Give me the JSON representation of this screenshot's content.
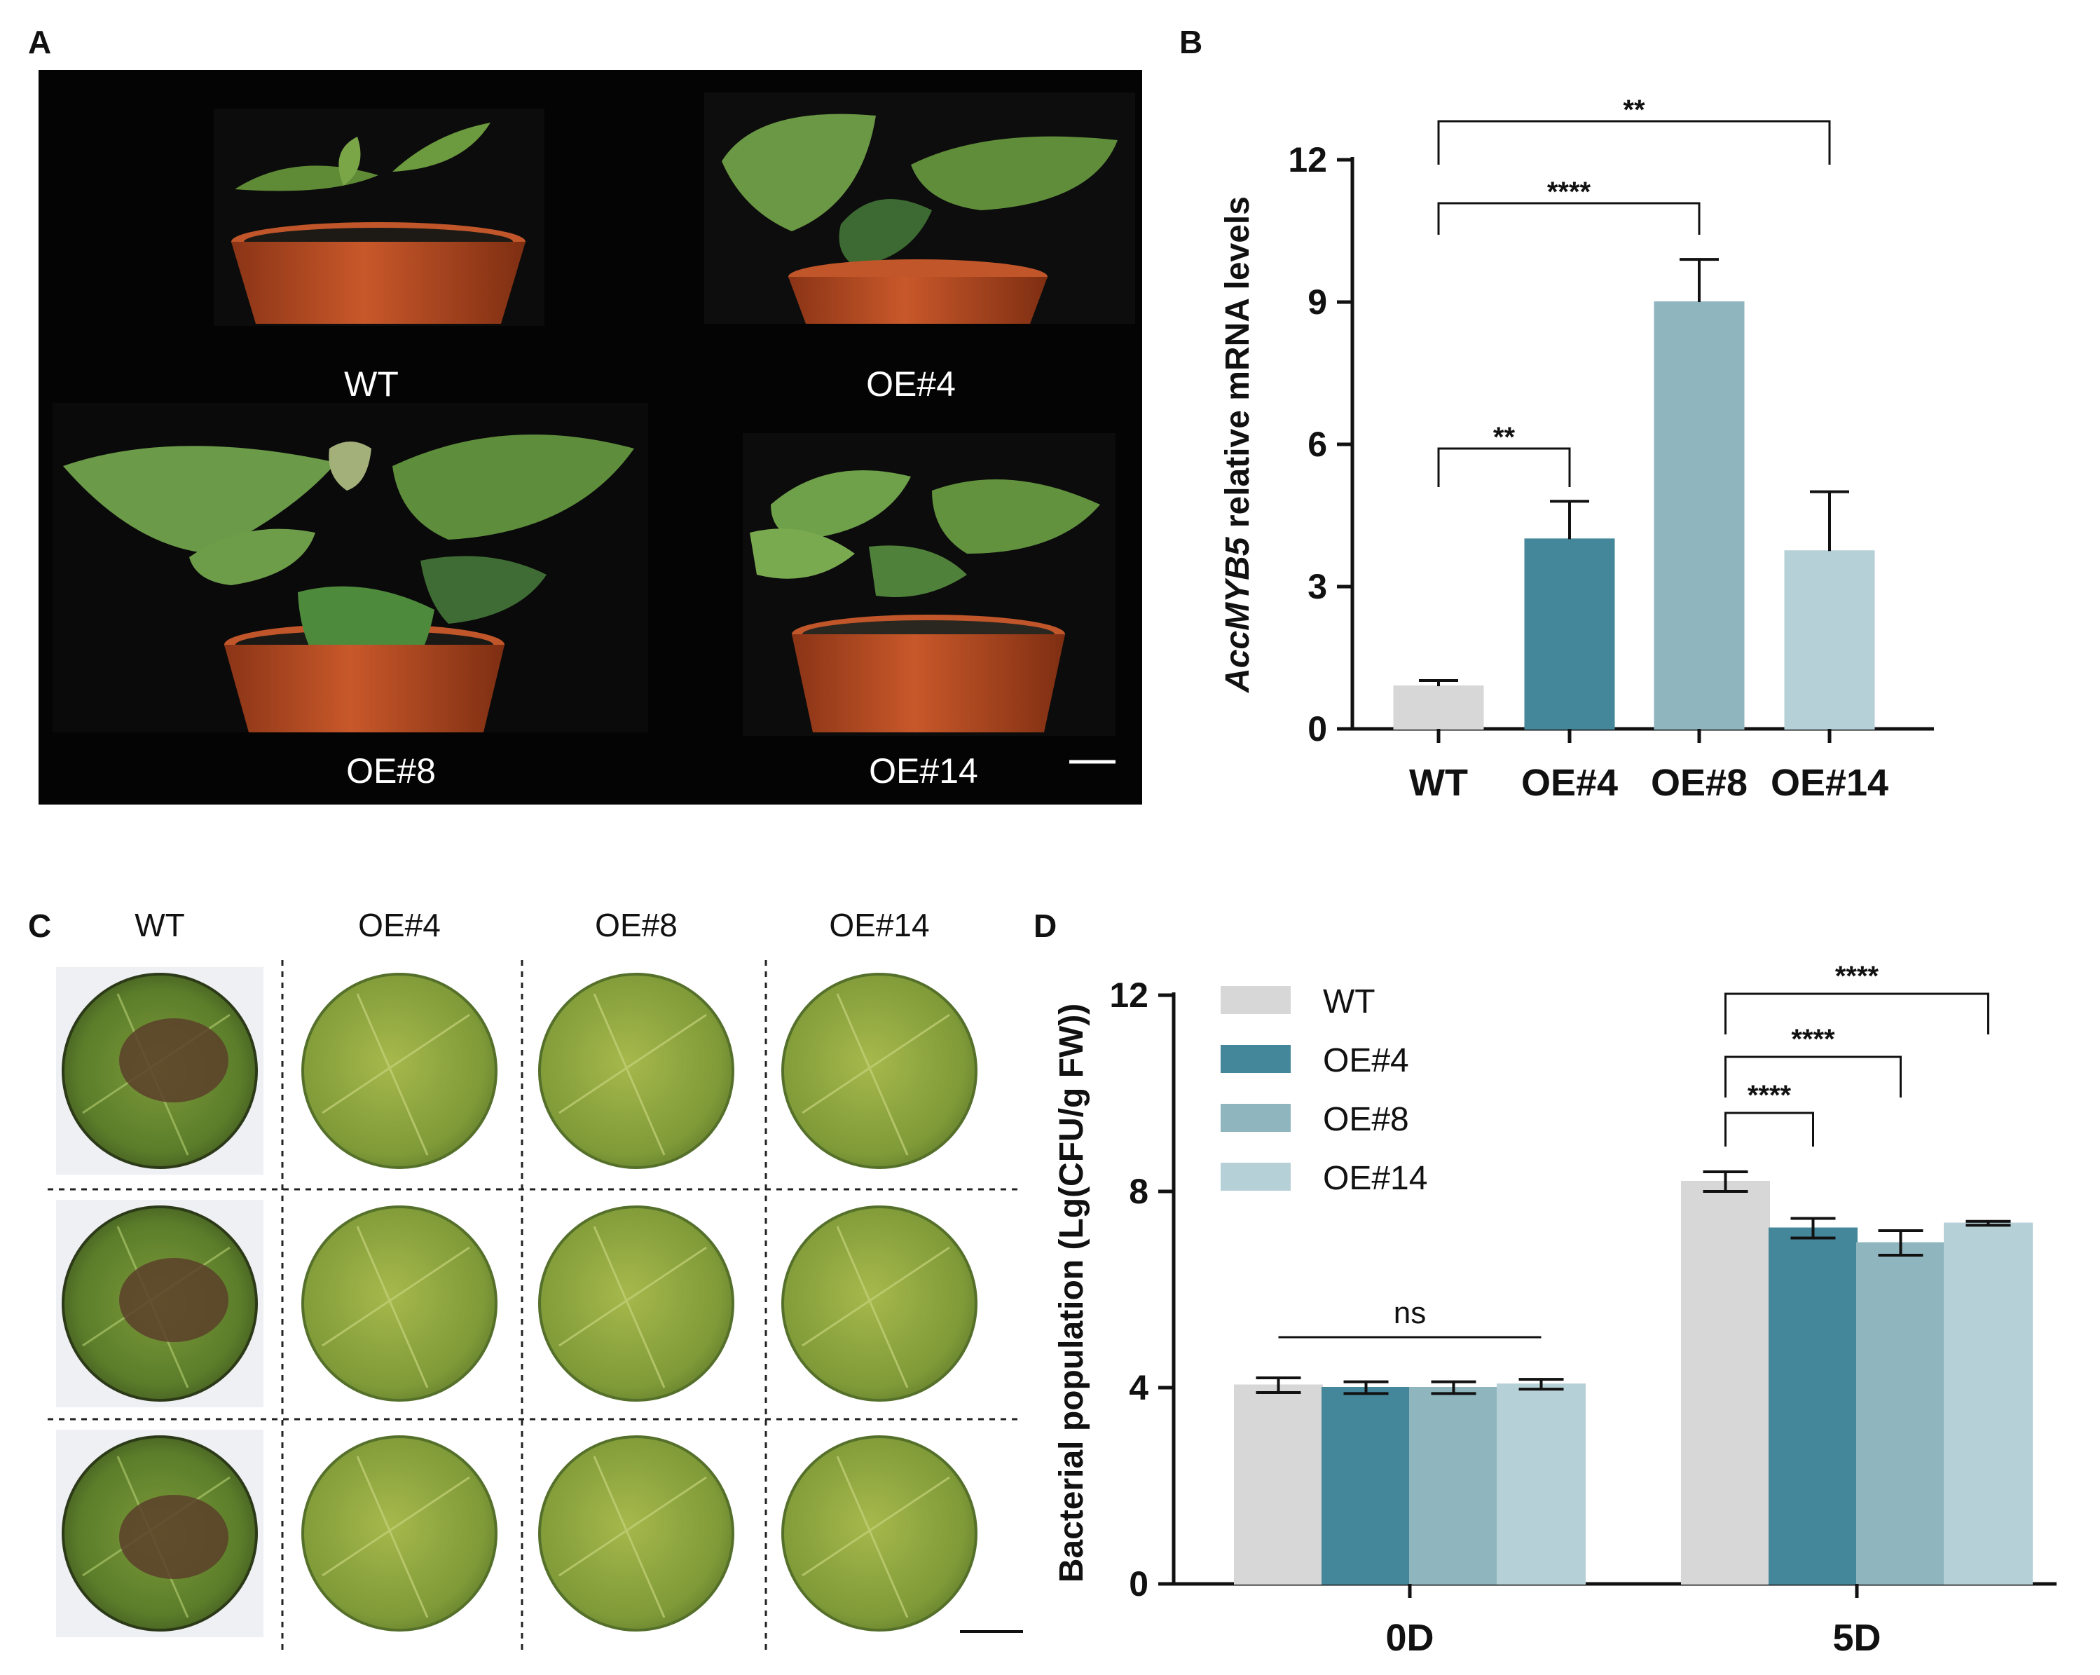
{
  "panels": {
    "a": "A",
    "b": "B",
    "c": "C",
    "d": "D"
  },
  "panel_a": {
    "labels": [
      "WT",
      "OE#4",
      "OE#8",
      "OE#14"
    ]
  },
  "panel_c": {
    "columns": [
      "WT",
      "OE#4",
      "OE#8",
      "OE#14"
    ],
    "rows": 3
  },
  "colors": {
    "WT": "#d6d7d6",
    "OE#4": "#45879a",
    "OE#8": "#8fb5bf",
    "OE#14": "#b6d0d8"
  },
  "chart_data": [
    {
      "id": "B",
      "type": "bar",
      "ylabel_italic": "AccMYB5",
      "ylabel_rest": " relative mRNA levels",
      "categories": [
        "WT",
        "OE#4",
        "OE#8",
        "OE#14"
      ],
      "values": [
        0.9,
        4.0,
        9.0,
        3.75
      ],
      "errors": [
        0.12,
        0.8,
        0.9,
        1.25
      ],
      "ylim": [
        0,
        12
      ],
      "yticks": [
        "0",
        "3",
        "6",
        "9",
        "12"
      ],
      "significance": [
        {
          "from": "WT",
          "to": "OE#4",
          "label": "**"
        },
        {
          "from": "WT",
          "to": "OE#8",
          "label": "****"
        },
        {
          "from": "WT",
          "to": "OE#14",
          "label": "**"
        }
      ]
    },
    {
      "id": "D",
      "type": "bar",
      "ylabel": "Bacterial population (Lg(CFU/g FW))",
      "groups": [
        "0D",
        "5D"
      ],
      "series": [
        {
          "name": "WT",
          "values": [
            4.05,
            8.2
          ],
          "errors": [
            0.15,
            0.2
          ]
        },
        {
          "name": "OE#4",
          "values": [
            4.0,
            7.25
          ],
          "errors": [
            0.12,
            0.2
          ]
        },
        {
          "name": "OE#8",
          "values": [
            4.0,
            6.95
          ],
          "errors": [
            0.12,
            0.25
          ]
        },
        {
          "name": "OE#14",
          "values": [
            4.07,
            7.35
          ],
          "errors": [
            0.1,
            0.04
          ]
        }
      ],
      "ylim": [
        0,
        12
      ],
      "yticks": [
        "0",
        "4",
        "8",
        "12"
      ],
      "significance": [
        {
          "group": "0D",
          "label": "ns"
        },
        {
          "group": "5D",
          "from": "WT",
          "to": "OE#4",
          "label": "****"
        },
        {
          "group": "5D",
          "from": "WT",
          "to": "OE#8",
          "label": "****"
        },
        {
          "group": "5D",
          "from": "WT",
          "to": "OE#14",
          "label": "****"
        }
      ]
    }
  ]
}
